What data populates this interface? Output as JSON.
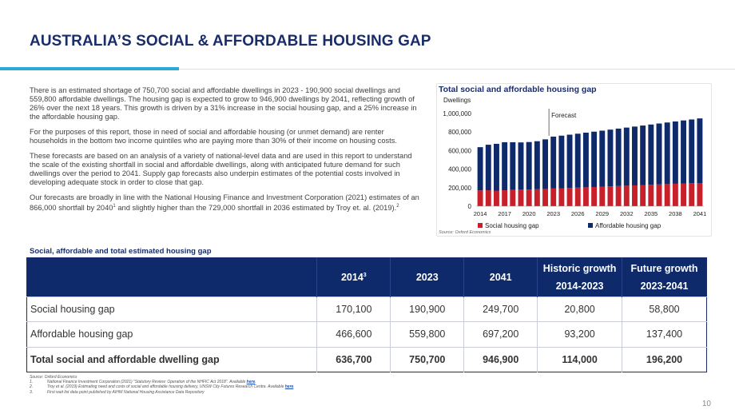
{
  "title": "AUSTRALIA’S SOCIAL & AFFORDABLE HOUSING GAP",
  "body": {
    "p1": "There is an estimated shortage of 750,700 social and affordable dwellings in 2023 - 190,900 social dwellings and 559,800 affordable dwellings. The housing gap is expected to grow to 946,900 dwellings by 2041, reflecting growth of 26% over the next 18 years. This growth is driven by a 31% increase in the social housing gap, and a 25% increase in the affordable housing gap.",
    "p2": "For the purposes of this report, those in need of social and affordable housing (or unmet demand) are renter households in the bottom two income quintiles who are paying more than 30% of their income on housing costs.",
    "p3": "These forecasts are based on an analysis of a variety of national-level data and are used in this report to understand the scale of the existing shortfall in social and affordable dwellings, along with anticipated future demand for such dwellings over the period to 2041. Supply gap forecasts also underpin estimates of the potential costs involved in developing adequate stock in order to close that gap.",
    "p4a": "Our forecasts are broadly in line with the National Housing Finance and Investment Corporation (2021) estimates of an 866,000 shortfall by 2040",
    "p4sup1": "1",
    "p4b": " and slightly higher than the 729,000 shortfall in 2036 estimated by Troy et. al. (2019).",
    "p4sup2": "2"
  },
  "chart_data": {
    "type": "bar",
    "stacked": true,
    "title": "Total social and affordable housing gap",
    "ylabel": "Dwellings",
    "ylim": [
      0,
      1000000
    ],
    "yticks": [
      "0",
      "200,000",
      "400,000",
      "600,000",
      "800,000",
      "1,000,000"
    ],
    "ytick_values": [
      0,
      200000,
      400000,
      600000,
      800000,
      1000000
    ],
    "x": [
      2014,
      2015,
      2016,
      2017,
      2018,
      2019,
      2020,
      2021,
      2022,
      2023,
      2024,
      2025,
      2026,
      2027,
      2028,
      2029,
      2030,
      2031,
      2032,
      2033,
      2034,
      2035,
      2036,
      2037,
      2038,
      2039,
      2040,
      2041
    ],
    "xtick_labels": [
      "2014",
      "2017",
      "2020",
      "2023",
      "2026",
      "2029",
      "2032",
      "2035",
      "2038",
      "2041"
    ],
    "annotation": {
      "text": "Forecast",
      "at": 2023
    },
    "series": [
      {
        "name": "Social housing gap",
        "color": "#c8202b",
        "values": [
          170100,
          172000,
          168000,
          172000,
          175000,
          178000,
          180000,
          183000,
          186000,
          190900,
          194000,
          197000,
          200000,
          203500,
          207000,
          210500,
          214000,
          217500,
          221000,
          224500,
          228000,
          231500,
          235000,
          238500,
          242000,
          245500,
          247500,
          249700
        ]
      },
      {
        "name": "Affordable housing gap",
        "color": "#0e2a6b",
        "values": [
          466600,
          491000,
          505000,
          518000,
          515000,
          510000,
          512000,
          518000,
          535000,
          559800,
          567000,
          574500,
          582000,
          589500,
          597000,
          604500,
          612000,
          619500,
          627000,
          634500,
          642000,
          649500,
          657000,
          664500,
          672000,
          679500,
          688000,
          697200
        ]
      }
    ],
    "source": "Source: Oxford Economics"
  },
  "table": {
    "title": "Social, affordable and total estimated housing gap",
    "headers": {
      "y2014": "2014",
      "y2014_sup": "3",
      "y2023": "2023",
      "y2041": "2041",
      "hist_top": "Historic growth",
      "hist_bottom": "2014-2023",
      "fut_top": "Future growth",
      "fut_bottom": "2023-2041"
    },
    "rows": [
      {
        "label": "Social housing gap",
        "v2014": "170,100",
        "v2023": "190,900",
        "v2041": "249,700",
        "hist": "20,800",
        "fut": "58,800"
      },
      {
        "label": "Affordable housing gap",
        "v2014": "466,600",
        "v2023": "559,800",
        "v2041": "697,200",
        "hist": "93,200",
        "fut": "137,400"
      },
      {
        "label": "Total social and affordable dwelling gap",
        "v2014": "636,700",
        "v2023": "750,700",
        "v2041": "946,900",
        "hist": "114,000",
        "fut": "196,200"
      }
    ]
  },
  "footnotes": {
    "source": "Source: Oxford Economics",
    "items": [
      {
        "n": "1.",
        "text": "National Finance Investment Corporation (2021) “Statutory Review: Operation of the NHFIC Act 2018”. Available ",
        "link": "here",
        "end": "."
      },
      {
        "n": "2.",
        "text": "Troy et al. (2019) Estimating need and costs of social and affordable housing delivery, UNSW City Futures Research Centre. Available ",
        "link": "here",
        "end": "."
      },
      {
        "n": "3.",
        "text": "First wait list data point published by AIHW National Housing Assistance Data Repository",
        "link": "",
        "end": ""
      }
    ]
  },
  "page_number": "10"
}
